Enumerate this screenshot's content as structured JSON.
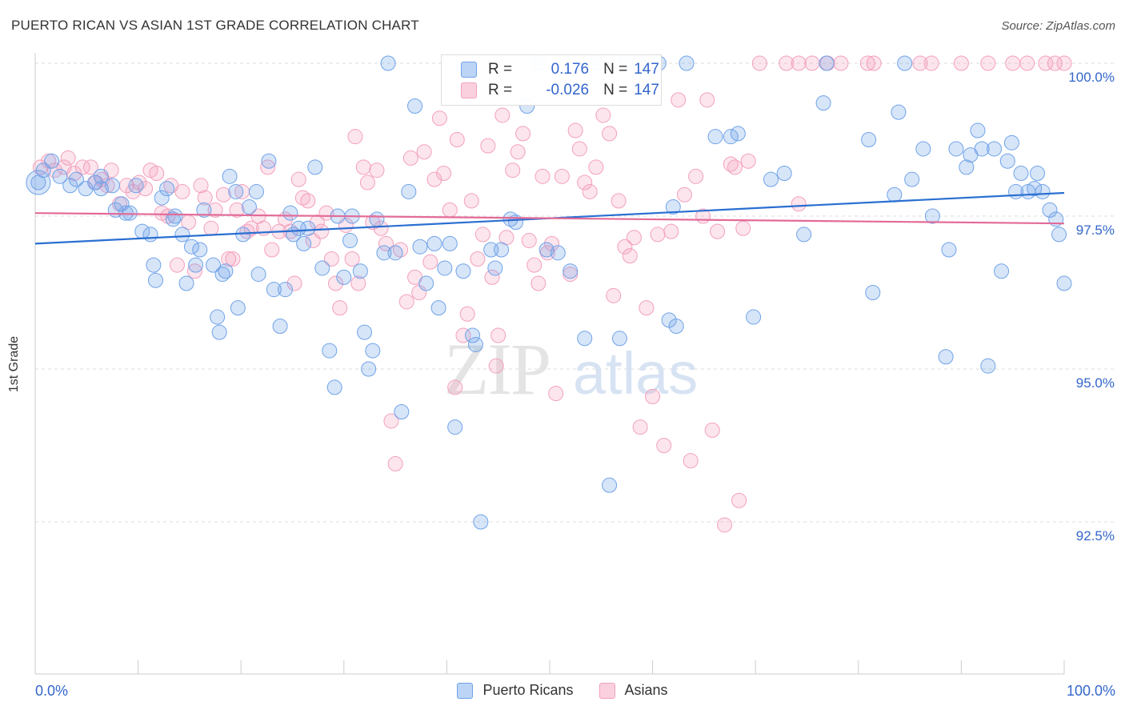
{
  "title": "PUERTO RICAN VS ASIAN 1ST GRADE CORRELATION CHART",
  "source": "Source: ZipAtlas.com",
  "watermark": {
    "zip": "ZIP",
    "atlas": "atlas"
  },
  "legend": {
    "r_label": "R =",
    "n_label": "N =",
    "rows": [
      {
        "r": "0.176",
        "n": "147",
        "color": "#6fa3e8"
      },
      {
        "r": "-0.026",
        "n": "147",
        "color": "#f3a0bd"
      }
    ]
  },
  "colors": {
    "blue": "#6fa3e8",
    "blue_line": "#2a6fd1",
    "pink": "#f3a0bd",
    "pink_line": "#e36b98",
    "axis_label": "#3366cc"
  },
  "chart_data": {
    "type": "scatter",
    "title": "PUERTO RICAN VS ASIAN 1ST GRADE CORRELATION CHART",
    "xlabel": "",
    "ylabel": "1st Grade",
    "xlim": [
      0,
      100
    ],
    "ylim": [
      89.9,
      100.2
    ],
    "x_tick_labels": [
      "0.0%",
      "100.0%"
    ],
    "y_ticks": [
      92.5,
      95.0,
      97.5,
      100.0
    ],
    "y_tick_labels": [
      "92.5%",
      "95.0%",
      "97.5%",
      "100.0%"
    ],
    "legend_position": "top-center",
    "series": [
      {
        "name": "Puerto Ricans",
        "color": "#6fa3e8",
        "trend": {
          "x": [
            0,
            100
          ],
          "y": [
            97.05,
            97.88
          ]
        },
        "points": [
          [
            0.3,
            98.05
          ],
          [
            0.8,
            98.25
          ],
          [
            1.6,
            98.4
          ],
          [
            2.4,
            98.15
          ],
          [
            3.4,
            98.0
          ],
          [
            4.0,
            98.1
          ],
          [
            4.9,
            97.95
          ],
          [
            5.8,
            98.05
          ],
          [
            6.4,
            97.95
          ],
          [
            6.4,
            98.15
          ],
          [
            7.5,
            98.0
          ],
          [
            7.8,
            97.6
          ],
          [
            8.4,
            97.7
          ],
          [
            8.8,
            97.55
          ],
          [
            9.2,
            97.55
          ],
          [
            9.8,
            98.0
          ],
          [
            10.4,
            97.25
          ],
          [
            11.2,
            97.2
          ],
          [
            11.5,
            96.7
          ],
          [
            11.7,
            96.45
          ],
          [
            12.3,
            97.8
          ],
          [
            12.8,
            97.95
          ],
          [
            13.4,
            97.45
          ],
          [
            13.6,
            97.5
          ],
          [
            14.3,
            97.2
          ],
          [
            14.7,
            96.4
          ],
          [
            15.2,
            97.0
          ],
          [
            15.6,
            96.7
          ],
          [
            16.0,
            96.95
          ],
          [
            16.4,
            97.6
          ],
          [
            17.3,
            96.7
          ],
          [
            17.7,
            95.85
          ],
          [
            17.9,
            95.6
          ],
          [
            18.2,
            96.55
          ],
          [
            18.5,
            96.6
          ],
          [
            18.9,
            98.15
          ],
          [
            19.5,
            97.9
          ],
          [
            19.7,
            96.0
          ],
          [
            20.2,
            97.2
          ],
          [
            20.8,
            97.65
          ],
          [
            21.5,
            97.9
          ],
          [
            21.7,
            96.55
          ],
          [
            22.7,
            98.4
          ],
          [
            23.2,
            96.3
          ],
          [
            23.8,
            95.7
          ],
          [
            24.3,
            96.3
          ],
          [
            24.8,
            97.55
          ],
          [
            25.1,
            97.2
          ],
          [
            25.6,
            97.3
          ],
          [
            26.1,
            97.05
          ],
          [
            26.5,
            97.3
          ],
          [
            27.2,
            98.3
          ],
          [
            27.9,
            96.65
          ],
          [
            28.6,
            95.3
          ],
          [
            29.1,
            94.7
          ],
          [
            29.4,
            97.5
          ],
          [
            30.0,
            96.5
          ],
          [
            30.6,
            97.1
          ],
          [
            30.8,
            97.5
          ],
          [
            31.6,
            96.6
          ],
          [
            32.0,
            95.6
          ],
          [
            32.4,
            95.0
          ],
          [
            32.8,
            95.3
          ],
          [
            33.2,
            97.45
          ],
          [
            33.9,
            96.9
          ],
          [
            34.3,
            100.0
          ],
          [
            35.0,
            96.9
          ],
          [
            35.6,
            94.3
          ],
          [
            36.3,
            97.9
          ],
          [
            36.9,
            99.3
          ],
          [
            37.4,
            97.0
          ],
          [
            38.0,
            96.4
          ],
          [
            38.8,
            97.05
          ],
          [
            39.2,
            96.0
          ],
          [
            39.8,
            96.65
          ],
          [
            40.3,
            97.05
          ],
          [
            40.8,
            94.05
          ],
          [
            41.6,
            96.6
          ],
          [
            42.5,
            95.55
          ],
          [
            42.8,
            95.4
          ],
          [
            43.3,
            92.5
          ],
          [
            44.3,
            96.95
          ],
          [
            44.7,
            96.65
          ],
          [
            45.3,
            96.95
          ],
          [
            46.2,
            97.45
          ],
          [
            46.7,
            97.4
          ],
          [
            47.8,
            99.3
          ],
          [
            48.9,
            100.0
          ],
          [
            49.7,
            96.95
          ],
          [
            50.8,
            96.9
          ],
          [
            52.0,
            96.6
          ],
          [
            53.4,
            95.5
          ],
          [
            54.6,
            100.0
          ],
          [
            55.8,
            93.1
          ],
          [
            56.8,
            95.5
          ],
          [
            57.4,
            100.0
          ],
          [
            58.7,
            100.0
          ],
          [
            60.6,
            100.0
          ],
          [
            61.6,
            95.8
          ],
          [
            62.0,
            97.65
          ],
          [
            62.3,
            95.7
          ],
          [
            63.3,
            100.0
          ],
          [
            66.1,
            98.8
          ],
          [
            67.6,
            98.8
          ],
          [
            68.3,
            98.85
          ],
          [
            69.8,
            95.85
          ],
          [
            71.5,
            98.1
          ],
          [
            72.8,
            98.2
          ],
          [
            74.7,
            97.2
          ],
          [
            76.6,
            99.35
          ],
          [
            76.9,
            100.0
          ],
          [
            81.0,
            98.75
          ],
          [
            81.4,
            96.25
          ],
          [
            83.5,
            97.85
          ],
          [
            83.9,
            99.2
          ],
          [
            84.5,
            100.0
          ],
          [
            85.2,
            98.1
          ],
          [
            86.3,
            98.6
          ],
          [
            87.2,
            97.5
          ],
          [
            88.5,
            95.2
          ],
          [
            88.8,
            96.95
          ],
          [
            89.5,
            98.6
          ],
          [
            90.5,
            98.3
          ],
          [
            90.9,
            98.5
          ],
          [
            91.6,
            98.9
          ],
          [
            92.0,
            98.6
          ],
          [
            92.6,
            95.05
          ],
          [
            93.2,
            98.6
          ],
          [
            93.9,
            96.6
          ],
          [
            94.5,
            98.4
          ],
          [
            94.9,
            98.7
          ],
          [
            95.3,
            97.9
          ],
          [
            95.8,
            98.2
          ],
          [
            96.5,
            97.9
          ],
          [
            97.1,
            97.95
          ],
          [
            97.4,
            98.2
          ],
          [
            97.9,
            97.9
          ],
          [
            98.6,
            97.6
          ],
          [
            99.2,
            97.45
          ],
          [
            99.5,
            97.2
          ],
          [
            100.0,
            96.4
          ]
        ]
      },
      {
        "name": "Asians",
        "color": "#f3a0bd",
        "trend": {
          "x": [
            0,
            100
          ],
          "y": [
            97.55,
            97.38
          ]
        },
        "points": [
          [
            0.5,
            98.3
          ],
          [
            1.3,
            98.4
          ],
          [
            1.9,
            98.25
          ],
          [
            2.8,
            98.3
          ],
          [
            3.2,
            98.45
          ],
          [
            3.8,
            98.2
          ],
          [
            4.6,
            98.3
          ],
          [
            5.4,
            98.3
          ],
          [
            5.9,
            98.05
          ],
          [
            6.5,
            98.1
          ],
          [
            7.0,
            98.0
          ],
          [
            7.4,
            98.25
          ],
          [
            8.2,
            97.7
          ],
          [
            8.9,
            98.0
          ],
          [
            9.5,
            97.9
          ],
          [
            10.1,
            98.05
          ],
          [
            10.7,
            97.95
          ],
          [
            11.2,
            98.25
          ],
          [
            11.8,
            98.2
          ],
          [
            12.3,
            97.55
          ],
          [
            12.9,
            97.5
          ],
          [
            13.2,
            98.0
          ],
          [
            13.8,
            96.7
          ],
          [
            14.3,
            97.9
          ],
          [
            14.9,
            97.4
          ],
          [
            15.5,
            96.6
          ],
          [
            16.1,
            98.0
          ],
          [
            16.5,
            97.8
          ],
          [
            17.1,
            97.3
          ],
          [
            17.5,
            97.6
          ],
          [
            18.3,
            97.85
          ],
          [
            18.8,
            96.8
          ],
          [
            19.2,
            96.8
          ],
          [
            19.6,
            97.6
          ],
          [
            20.1,
            97.9
          ],
          [
            20.6,
            97.25
          ],
          [
            21.0,
            97.3
          ],
          [
            21.7,
            97.5
          ],
          [
            22.2,
            97.3
          ],
          [
            22.6,
            98.3
          ],
          [
            23.0,
            96.95
          ],
          [
            23.7,
            97.25
          ],
          [
            24.3,
            97.45
          ],
          [
            24.8,
            97.25
          ],
          [
            25.2,
            96.4
          ],
          [
            25.6,
            98.1
          ],
          [
            26.0,
            97.8
          ],
          [
            26.5,
            97.75
          ],
          [
            27.0,
            97.1
          ],
          [
            27.4,
            97.4
          ],
          [
            27.8,
            97.25
          ],
          [
            28.3,
            97.55
          ],
          [
            28.8,
            96.8
          ],
          [
            29.2,
            96.4
          ],
          [
            29.6,
            96.0
          ],
          [
            30.2,
            97.35
          ],
          [
            30.8,
            96.8
          ],
          [
            31.1,
            98.8
          ],
          [
            31.4,
            96.4
          ],
          [
            31.9,
            98.3
          ],
          [
            32.3,
            98.05
          ],
          [
            32.8,
            97.4
          ],
          [
            33.2,
            98.25
          ],
          [
            33.6,
            97.3
          ],
          [
            34.1,
            97.05
          ],
          [
            34.6,
            94.15
          ],
          [
            35.0,
            93.45
          ],
          [
            35.5,
            96.95
          ],
          [
            36.1,
            96.1
          ],
          [
            36.5,
            98.45
          ],
          [
            36.9,
            96.5
          ],
          [
            37.3,
            96.25
          ],
          [
            37.8,
            98.55
          ],
          [
            38.4,
            96.75
          ],
          [
            38.8,
            98.1
          ],
          [
            39.3,
            99.1
          ],
          [
            39.7,
            98.2
          ],
          [
            40.3,
            97.6
          ],
          [
            40.8,
            94.7
          ],
          [
            41.0,
            98.75
          ],
          [
            41.6,
            95.55
          ],
          [
            42.0,
            95.9
          ],
          [
            42.4,
            97.75
          ],
          [
            43.0,
            96.8
          ],
          [
            43.5,
            97.2
          ],
          [
            44.0,
            98.65
          ],
          [
            44.4,
            96.5
          ],
          [
            44.8,
            95.05
          ],
          [
            45.0,
            95.55
          ],
          [
            45.4,
            99.15
          ],
          [
            45.8,
            97.15
          ],
          [
            46.4,
            98.25
          ],
          [
            46.9,
            98.55
          ],
          [
            47.4,
            98.85
          ],
          [
            48.0,
            97.1
          ],
          [
            48.5,
            96.7
          ],
          [
            48.9,
            96.4
          ],
          [
            49.3,
            98.15
          ],
          [
            49.8,
            96.9
          ],
          [
            50.2,
            97.05
          ],
          [
            50.6,
            94.6
          ],
          [
            51.2,
            98.15
          ],
          [
            52.0,
            96.55
          ],
          [
            52.5,
            98.9
          ],
          [
            52.9,
            98.6
          ],
          [
            53.4,
            98.05
          ],
          [
            53.9,
            97.9
          ],
          [
            54.5,
            98.3
          ],
          [
            55.2,
            99.15
          ],
          [
            55.8,
            98.85
          ],
          [
            56.2,
            96.2
          ],
          [
            56.7,
            97.75
          ],
          [
            57.3,
            97.0
          ],
          [
            57.8,
            96.85
          ],
          [
            58.2,
            97.15
          ],
          [
            58.8,
            94.05
          ],
          [
            59.4,
            96.0
          ],
          [
            60.0,
            94.55
          ],
          [
            60.5,
            97.2
          ],
          [
            61.1,
            93.75
          ],
          [
            61.8,
            97.25
          ],
          [
            62.5,
            99.4
          ],
          [
            63.1,
            97.85
          ],
          [
            63.7,
            93.5
          ],
          [
            64.2,
            98.15
          ],
          [
            64.9,
            97.5
          ],
          [
            65.3,
            99.4
          ],
          [
            65.8,
            94.0
          ],
          [
            66.3,
            97.25
          ],
          [
            67.0,
            92.45
          ],
          [
            67.6,
            98.35
          ],
          [
            68.0,
            98.3
          ],
          [
            68.4,
            92.85
          ],
          [
            68.8,
            97.3
          ],
          [
            69.3,
            98.4
          ],
          [
            70.4,
            100.0
          ],
          [
            73.0,
            100.0
          ],
          [
            74.2,
            100.0
          ],
          [
            75.5,
            100.0
          ],
          [
            77.0,
            100.0
          ],
          [
            78.3,
            100.0
          ],
          [
            80.9,
            100.0
          ],
          [
            81.5,
            100.0
          ],
          [
            86.0,
            100.0
          ],
          [
            87.1,
            100.0
          ],
          [
            90.0,
            100.0
          ],
          [
            92.6,
            100.0
          ],
          [
            95.0,
            100.0
          ],
          [
            96.4,
            100.0
          ],
          [
            98.2,
            100.0
          ],
          [
            99.1,
            100.0
          ],
          [
            100.0,
            100.0
          ],
          [
            74.2,
            97.7
          ]
        ]
      }
    ]
  },
  "bottom_legend": [
    {
      "label": "Puerto Ricans",
      "color": "#6fa3e8"
    },
    {
      "label": "Asians",
      "color": "#f3a0bd"
    }
  ]
}
